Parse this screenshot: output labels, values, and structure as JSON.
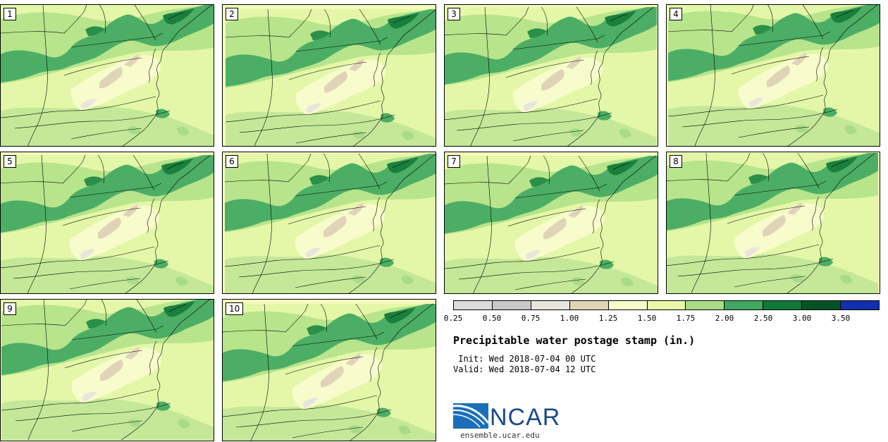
{
  "panels": [
    {
      "number": "1"
    },
    {
      "number": "2"
    },
    {
      "number": "3"
    },
    {
      "number": "4"
    },
    {
      "number": "5"
    },
    {
      "number": "6"
    },
    {
      "number": "7"
    },
    {
      "number": "8"
    },
    {
      "number": "9"
    },
    {
      "number": "10"
    }
  ],
  "colorbar": {
    "colors": [
      "#dcdcdc",
      "#c8c8c8",
      "#e8e6dc",
      "#e0d4b8",
      "#f8fccc",
      "#e8f8a8",
      "#a8dc88",
      "#40a860",
      "#107838",
      "#005424",
      "#1030b0"
    ],
    "labels": [
      "0.25",
      "0.50",
      "0.75",
      "1.00",
      "1.25",
      "1.50",
      "1.75",
      "2.00",
      "2.50",
      "3.00",
      "3.50"
    ]
  },
  "title": "Precipitable water postage stamp (in.)",
  "init": " Init: Wed 2018-07-04 00 UTC",
  "valid": "Valid: Wed 2018-07-04 12 UTC",
  "logo": {
    "text": "NCAR",
    "url": "ensemble.ucar.edu"
  }
}
